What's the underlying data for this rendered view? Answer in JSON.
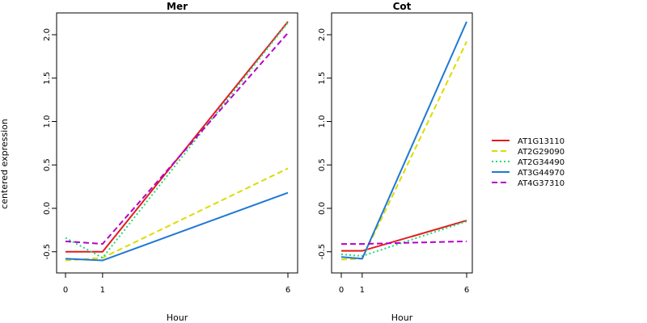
{
  "chart_data": {
    "type": "line",
    "ylabel": "centered expression",
    "legend_position": "right",
    "series_styles": [
      {
        "name": "AT1G13110",
        "color": "#e41a1c",
        "dash": "solid"
      },
      {
        "name": "AT2G29090",
        "color": "#dcdc00",
        "dash": "dashed"
      },
      {
        "name": "AT2G34490",
        "color": "#21d97a",
        "dash": "dotted"
      },
      {
        "name": "AT3G44970",
        "color": "#1f78d4",
        "dash": "solid"
      },
      {
        "name": "AT4G37310",
        "color": "#b400cc",
        "dash": "dashed"
      }
    ],
    "panels": [
      {
        "title": "Mer",
        "xlabel": "Hour",
        "categories": [
          "0",
          "1",
          "6"
        ],
        "ylim": [
          -0.75,
          2.25
        ],
        "yticks": [
          -0.5,
          0.0,
          0.5,
          1.0,
          1.5,
          2.0
        ],
        "ytick_labels": [
          "-0.5",
          "0.0",
          "0.5",
          "1.0",
          "1.5",
          "2.0"
        ],
        "series": [
          {
            "name": "AT1G13110",
            "values": [
              -0.5,
              -0.5,
              2.15
            ]
          },
          {
            "name": "AT2G29090",
            "values": [
              -0.6,
              -0.57,
              0.46
            ]
          },
          {
            "name": "AT2G34490",
            "values": [
              -0.34,
              -0.57,
              2.14
            ]
          },
          {
            "name": "AT3G44970",
            "values": [
              -0.58,
              -0.6,
              0.18
            ]
          },
          {
            "name": "AT4G37310",
            "values": [
              -0.38,
              -0.41,
              2.02
            ]
          }
        ]
      },
      {
        "title": "Cot",
        "xlabel": "Hour",
        "categories": [
          "0",
          "1",
          "6"
        ],
        "ylim": [
          -0.75,
          2.25
        ],
        "yticks": [
          -0.5,
          0.0,
          0.5,
          1.0,
          1.5,
          2.0
        ],
        "ytick_labels": [
          "-0.5",
          "0.0",
          "0.5",
          "1.0",
          "1.5",
          "2.0"
        ],
        "series": [
          {
            "name": "AT1G13110",
            "values": [
              -0.49,
              -0.49,
              -0.14
            ]
          },
          {
            "name": "AT2G29090",
            "values": [
              -0.59,
              -0.58,
              1.92
            ]
          },
          {
            "name": "AT2G34490",
            "values": [
              -0.53,
              -0.55,
              -0.15
            ]
          },
          {
            "name": "AT3G44970",
            "values": [
              -0.56,
              -0.58,
              2.15
            ]
          },
          {
            "name": "AT4G37310",
            "values": [
              -0.41,
              -0.41,
              -0.38
            ]
          }
        ]
      }
    ],
    "legend": [
      "AT1G13110",
      "AT2G29090",
      "AT2G34490",
      "AT3G44970",
      "AT4G37310"
    ]
  }
}
